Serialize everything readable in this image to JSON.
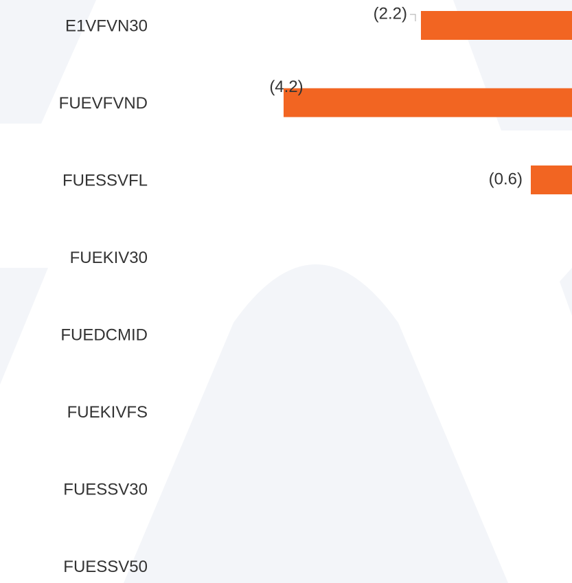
{
  "chart_data": {
    "type": "barh",
    "categories": [
      "E1VFVN30",
      "FUEVFVND",
      "FUESSVFL",
      "FUEKIV30",
      "FUEDCMID",
      "FUEKIVFS",
      "FUESSV30",
      "FUESSV50"
    ],
    "values": [
      -2.2,
      -4.2,
      -0.6,
      null,
      null,
      null,
      null,
      null
    ],
    "value_labels": [
      "(2.2)",
      "(4.2)",
      "(0.6)",
      null,
      null,
      null,
      null,
      null
    ],
    "color": "#f26522",
    "xlim": [
      -6,
      0
    ]
  }
}
